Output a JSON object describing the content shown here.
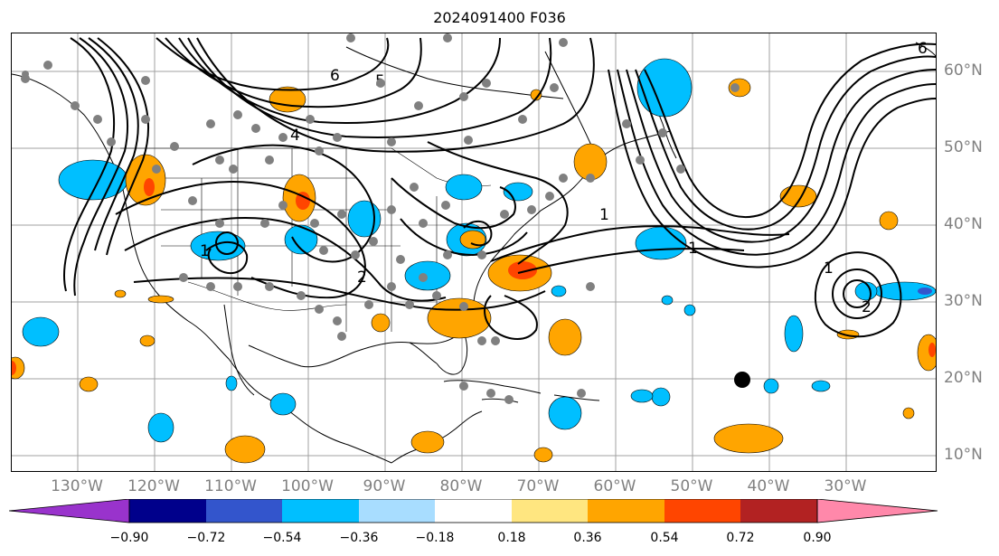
{
  "title": "2024091400 F036",
  "map": {
    "projection": "cylindrical",
    "lon_range": [
      -142,
      -22
    ],
    "lat_range": [
      8,
      65
    ],
    "grid": true
  },
  "lon_labels": [
    "130°W",
    "120°W",
    "110°W",
    "100°W",
    "90°W",
    "80°W",
    "70°W",
    "60°W",
    "50°W",
    "40°W",
    "30°W"
  ],
  "lat_labels": [
    "60°N",
    "50°N",
    "40°N",
    "30°N",
    "20°N",
    "10°N"
  ],
  "contour_labels": [
    "6",
    "5",
    "4",
    "1",
    "1",
    "1",
    "2",
    "2",
    "1",
    "6"
  ],
  "colorbar": {
    "tick_labels": [
      "−0.90",
      "−0.72",
      "−0.54",
      "−0.36",
      "−0.18",
      "0.18",
      "0.36",
      "0.54",
      "0.72",
      "0.90"
    ],
    "colors": [
      "#9933cc",
      "#00008b",
      "#3355cc",
      "#00bfff",
      "#a8ddff",
      "#ffffff",
      "#ffe680",
      "#ffa500",
      "#ff4500",
      "#b22222",
      "#ff88aa"
    ],
    "extend": "both"
  },
  "colors": {
    "positive_fill": "#ffa500",
    "positive_strong": "#ff4500",
    "negative_fill": "#00bfff",
    "negative_strong": "#3355cc",
    "station_dot": "#808080",
    "marker": "#000000",
    "grid": "#a0a0a0"
  },
  "marker": {
    "name": "storm-center-marker",
    "lon": -45,
    "lat": 20
  }
}
